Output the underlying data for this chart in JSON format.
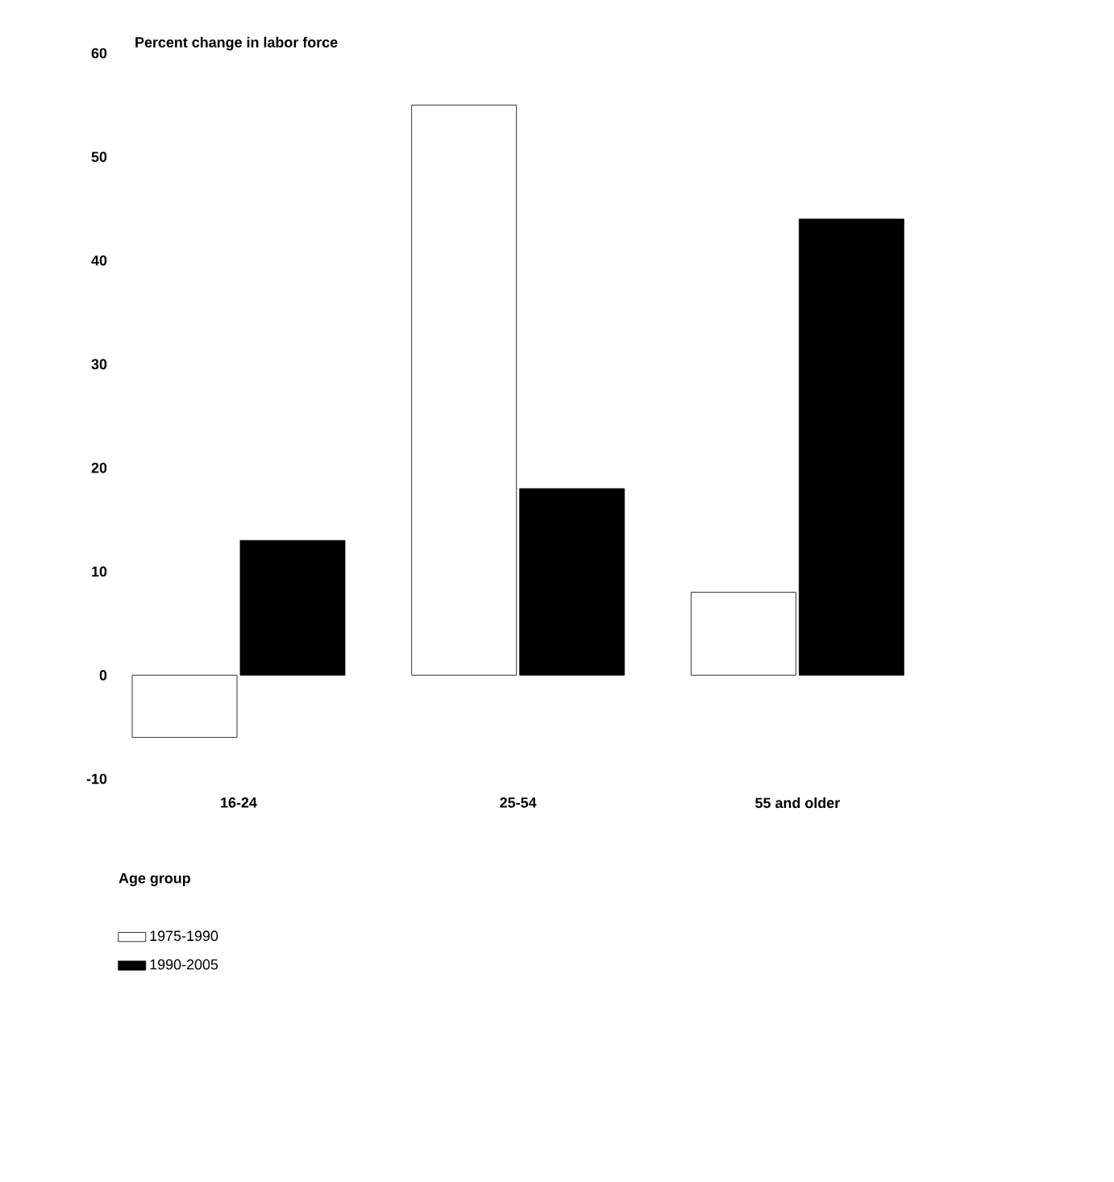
{
  "chart_data": {
    "type": "bar",
    "title": "Percent change in labor force",
    "xlabel": "Age group",
    "categories": [
      "16-24",
      "25-54",
      "55 and older"
    ],
    "series": [
      {
        "name": "1975-1990",
        "color": "#ffffff",
        "values": [
          -6,
          55,
          8
        ]
      },
      {
        "name": "1990-2005",
        "color": "#000000",
        "values": [
          13,
          18,
          44
        ]
      }
    ],
    "ylim": [
      -10,
      60
    ],
    "yticks": [
      -10,
      0,
      10,
      20,
      30,
      40,
      50,
      60
    ],
    "legend": "bottom"
  }
}
